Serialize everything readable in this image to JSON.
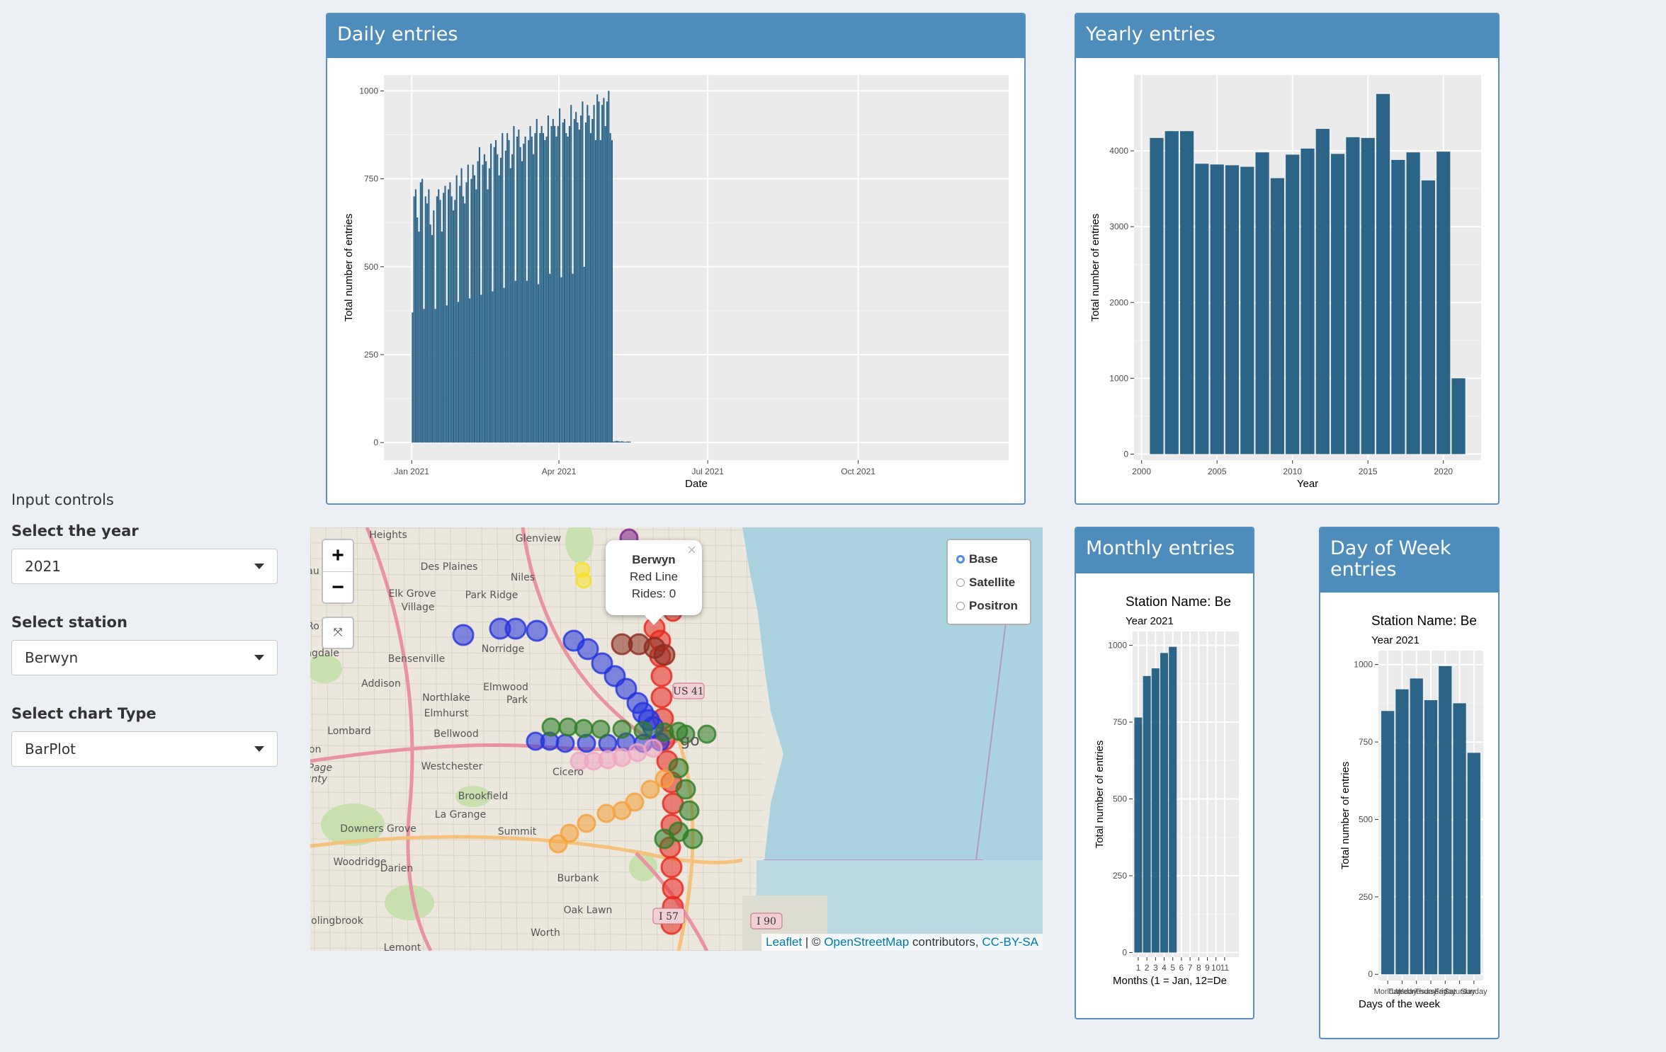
{
  "sidebar": {
    "title": "Input controls",
    "year_label": "Select the year",
    "year_value": "2021",
    "station_label": "Select station",
    "station_value": "Berwyn",
    "chart_label": "Select chart Type",
    "chart_value": "BarPlot"
  },
  "boxes": {
    "daily": "Daily entries",
    "yearly": "Yearly entries",
    "monthly": "Monthly entries",
    "dow": "Day of Week entries"
  },
  "map": {
    "popup_station": "Berwyn",
    "popup_line": "Red Line",
    "popup_rides": "Rides: 0",
    "zoom_in": "+",
    "zoom_out": "−",
    "reset": "⤧",
    "close": "×",
    "layers": [
      "Base",
      "Satellite",
      "Positron"
    ],
    "attribution_leaflet": "Leaflet",
    "attribution_sep": " | © ",
    "attribution_osm": "OpenStreetMap",
    "attribution_mid": " contributors, ",
    "attribution_license": "CC-BY-SA",
    "labels": [
      "Heights",
      "Glenview",
      "Des Plaines",
      "Niles",
      "Elk Grove",
      "Village",
      "Park Ridge",
      "Norridge",
      "Bensenville",
      "Addison",
      "Northlake",
      "Elmwood",
      "Park",
      "Elmhurst",
      "Lombard",
      "Bellwood",
      "Westchester",
      "Cicero",
      "Brookfield",
      "La Grange",
      "Downers Grove",
      "Summit",
      "Woodridge",
      "Darien",
      "Burbank",
      "Oak Lawn",
      "Worth",
      "olingbrook",
      "Lemont",
      "DuPage",
      "ounty",
      "omingdale",
      "ton",
      "Ro",
      "au",
      "go"
    ],
    "shields": [
      "US 41",
      "I 57",
      "I 90"
    ],
    "colors": {
      "water": "#aad3df",
      "land": "#ebe7dc",
      "red": "#e8261e",
      "blue": "#2233dd",
      "green": "#2e7d26",
      "orange": "#f4a13a",
      "pink": "#f0a6c4",
      "brown": "#8b2b1e",
      "purple": "#7e1f8c",
      "yellow": "#f5e027"
    }
  },
  "chart_data": [
    {
      "type": "bar",
      "title": "",
      "xlabel": "Date",
      "ylabel": "Total number of entries",
      "xtick_labels": [
        "Jan 2021",
        "Apr 2021",
        "Jul 2021",
        "Oct 2021"
      ],
      "xtick_days": [
        0,
        90,
        181,
        273
      ],
      "xlim_days": [
        -17,
        365
      ],
      "ylim": [
        -50,
        1045
      ],
      "yticks": [
        0,
        250,
        500,
        750,
        1000
      ],
      "start_day": 0,
      "values": [
        370,
        700,
        720,
        640,
        600,
        740,
        750,
        380,
        700,
        680,
        720,
        620,
        590,
        660,
        380,
        700,
        720,
        690,
        600,
        710,
        730,
        390,
        720,
        740,
        700,
        660,
        690,
        760,
        400,
        730,
        780,
        700,
        680,
        740,
        790,
        410,
        750,
        790,
        760,
        720,
        800,
        840,
        420,
        790,
        820,
        800,
        720,
        780,
        850,
        430,
        840,
        860,
        820,
        760,
        810,
        880,
        440,
        830,
        880,
        860,
        780,
        820,
        900,
        460,
        870,
        890,
        840,
        800,
        850,
        870,
        460,
        860,
        900,
        870,
        820,
        880,
        920,
        450,
        880,
        900,
        880,
        860,
        870,
        930,
        480,
        900,
        920,
        900,
        870,
        900,
        950,
        470,
        910,
        920,
        880,
        870,
        900,
        960,
        480,
        920,
        940,
        910,
        890,
        930,
        970,
        500,
        910,
        960,
        930,
        880,
        920,
        960,
        860,
        990,
        970,
        860,
        960,
        980,
        900,
        970,
        1000,
        880,
        860,
        3,
        4,
        5,
        4,
        3,
        4,
        3,
        2,
        3,
        3,
        3
      ]
    },
    {
      "type": "bar",
      "title": "",
      "xlabel": "Year",
      "ylabel": "Total number of entries",
      "categories": [
        2001,
        2002,
        2003,
        2004,
        2005,
        2006,
        2007,
        2008,
        2009,
        2010,
        2011,
        2012,
        2013,
        2014,
        2015,
        2016,
        2017,
        2018,
        2019,
        2020,
        2021
      ],
      "values": [
        4170,
        4260,
        4260,
        3830,
        3820,
        3810,
        3790,
        3980,
        3640,
        3950,
        4030,
        4290,
        3960,
        4180,
        4170,
        4750,
        3880,
        3980,
        3610,
        3990,
        1000
      ],
      "xlim": [
        2000,
        2022.5
      ],
      "xticks": [
        2000,
        2005,
        2010,
        2015,
        2020
      ],
      "ylim": [
        -80,
        5000
      ],
      "yticks": [
        0,
        1000,
        2000,
        3000,
        4000
      ]
    },
    {
      "type": "bar",
      "title": "Station Name:  Be",
      "subtitle": "Year 2021",
      "xlabel": "Months (1 = Jan, 12=De",
      "ylabel": "Total number of entries",
      "categories": [
        "1",
        "2",
        "3",
        "4",
        "5",
        "6",
        "7",
        "8",
        "9",
        "10",
        "11"
      ],
      "values": [
        765,
        900,
        925,
        975,
        995,
        0,
        0,
        0,
        0,
        0,
        0
      ],
      "ylim": [
        -15,
        1045
      ],
      "yticks": [
        0,
        250,
        500,
        750,
        1000
      ]
    },
    {
      "type": "bar",
      "title": "Station Name:  Be",
      "subtitle": "Year 2021",
      "xlabel": "Days of the week",
      "ylabel": "Total number of entries",
      "categories": [
        "Monday",
        "Tuesday",
        "Wednesday",
        "Thursday",
        "Friday",
        "Saturday",
        "Sunday"
      ],
      "values": [
        850,
        920,
        955,
        885,
        995,
        875,
        715
      ],
      "ylim": [
        -20,
        1045
      ],
      "yticks": [
        0,
        250,
        500,
        750,
        1000
      ]
    }
  ]
}
